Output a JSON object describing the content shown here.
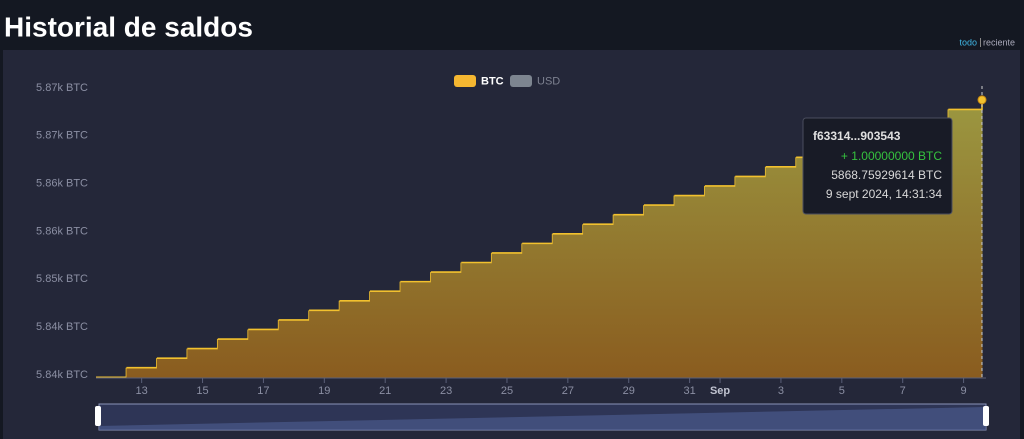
{
  "header": {
    "title": "Historial de saldos",
    "range_links": [
      "todo",
      "reciente"
    ]
  },
  "chart_data": {
    "type": "step-area",
    "legend": [
      {
        "name": "BTC",
        "color": "#f5b731",
        "active": true
      },
      {
        "name": "USD",
        "color": "#7d8590",
        "active": false
      }
    ],
    "x": [
      "2024-08-11T12:00",
      "2024-08-12T12:00",
      "2024-08-13T12:00",
      "2024-08-14T12:00",
      "2024-08-15T12:00",
      "2024-08-16T12:00",
      "2024-08-17T12:00",
      "2024-08-18T12:00",
      "2024-08-19T12:00",
      "2024-08-20T12:00",
      "2024-08-21T12:00",
      "2024-08-22T12:00",
      "2024-08-23T12:00",
      "2024-08-24T12:00",
      "2024-08-25T12:00",
      "2024-08-26T12:00",
      "2024-08-27T12:00",
      "2024-08-28T12:00",
      "2024-08-29T12:00",
      "2024-08-30T12:00",
      "2024-08-31T12:00",
      "2024-09-01T12:00",
      "2024-09-02T12:00",
      "2024-09-03T12:00",
      "2024-09-04T12:00",
      "2024-09-05T12:00",
      "2024-09-06T12:00",
      "2024-09-07T12:00",
      "2024-09-08T12:00",
      "2024-09-09T14:31"
    ],
    "series": [
      {
        "name": "BTC",
        "color": "#f2c12e",
        "values": [
          5839.76,
          5840.76,
          5841.76,
          5842.76,
          5843.76,
          5844.76,
          5845.76,
          5846.76,
          5847.76,
          5848.76,
          5849.76,
          5850.76,
          5851.76,
          5852.76,
          5853.76,
          5854.76,
          5855.76,
          5856.76,
          5857.76,
          5858.76,
          5859.76,
          5860.76,
          5861.76,
          5862.76,
          5863.76,
          5864.76,
          5865.76,
          5866.76,
          5867.76,
          5868.75929614
        ]
      }
    ],
    "xlim": [
      "2024-08-11T12:00",
      "2024-09-09T14:31"
    ],
    "xticks": [
      {
        "value": "2024-08-13",
        "label": "13"
      },
      {
        "value": "2024-08-15",
        "label": "15"
      },
      {
        "value": "2024-08-17",
        "label": "17"
      },
      {
        "value": "2024-08-19",
        "label": "19"
      },
      {
        "value": "2024-08-21",
        "label": "21"
      },
      {
        "value": "2024-08-23",
        "label": "23"
      },
      {
        "value": "2024-08-25",
        "label": "25"
      },
      {
        "value": "2024-08-27",
        "label": "27"
      },
      {
        "value": "2024-08-29",
        "label": "29"
      },
      {
        "value": "2024-08-31",
        "label": "31"
      },
      {
        "value": "2024-09-01",
        "label": "Sep"
      },
      {
        "value": "2024-09-03",
        "label": "3"
      },
      {
        "value": "2024-09-05",
        "label": "5"
      },
      {
        "value": "2024-09-07",
        "label": "7"
      },
      {
        "value": "2024-09-09",
        "label": "9"
      }
    ],
    "ylim": [
      5840,
      5870
    ],
    "yticks": [
      {
        "value": 5840,
        "label": "5.84k BTC"
      },
      {
        "value": 5845,
        "label": "5.84k BTC"
      },
      {
        "value": 5850,
        "label": "5.85k BTC"
      },
      {
        "value": 5855,
        "label": "5.86k BTC"
      },
      {
        "value": 5860,
        "label": "5.86k BTC"
      },
      {
        "value": 5865,
        "label": "5.87k BTC"
      },
      {
        "value": 5870,
        "label": "5.87k BTC"
      }
    ],
    "tooltip": {
      "id": "f63314...903543",
      "change": "+ 1.00000000 BTC",
      "balance": "5868.75929614 BTC",
      "date": "9 sept 2024, 14:31:34"
    }
  }
}
